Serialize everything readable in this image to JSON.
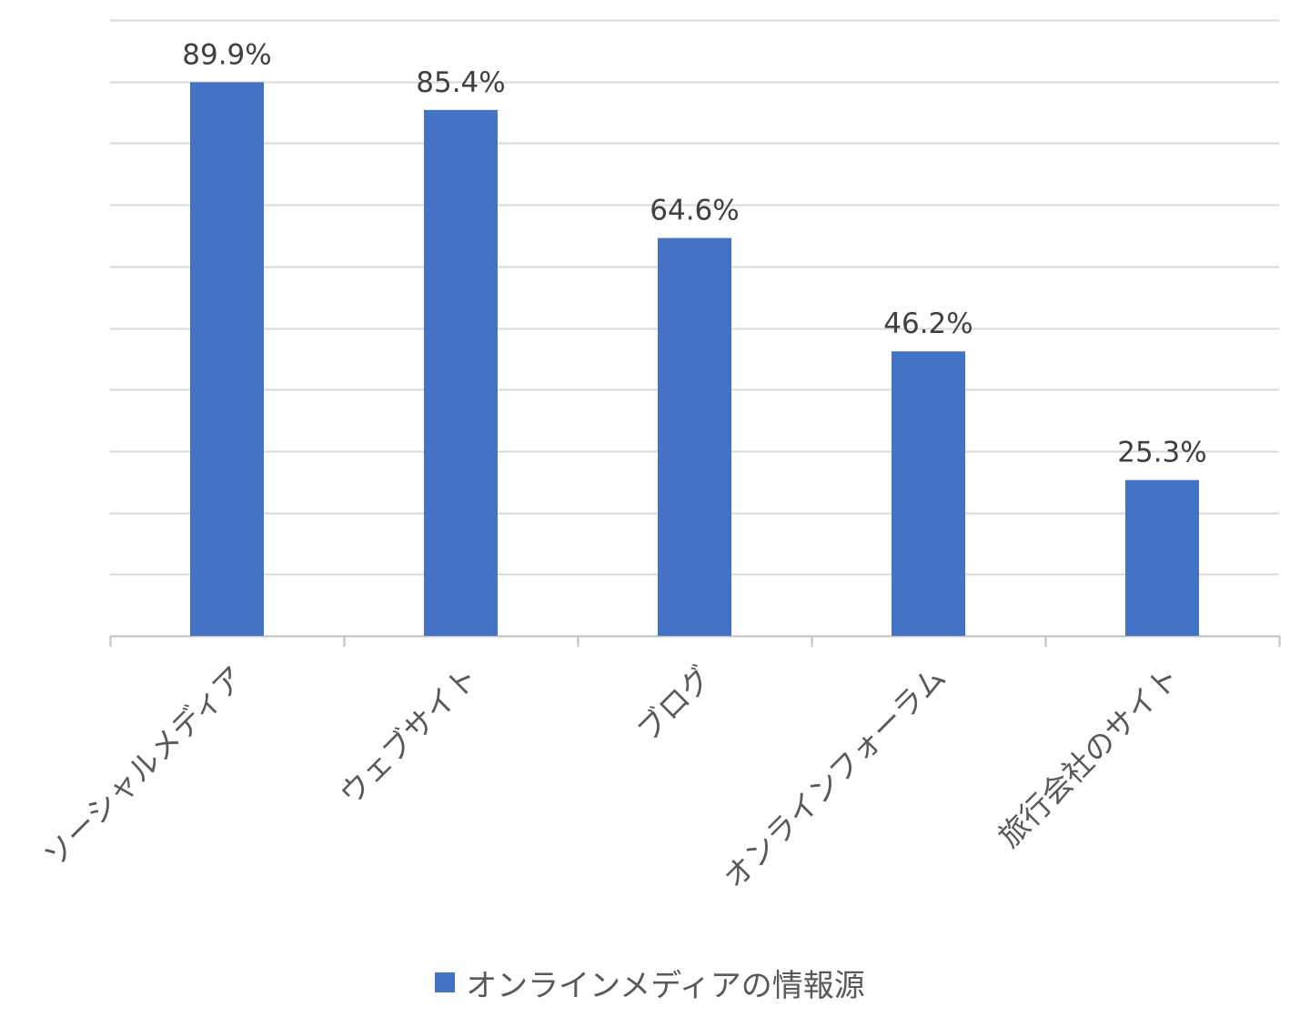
{
  "chart_data": {
    "type": "bar",
    "categories": [
      "ソーシャルメディア",
      "ウェブサイト",
      "ブログ",
      "オンラインフォーラム",
      "旅行会社のサイト"
    ],
    "series": [
      {
        "name": "オンラインメディアの情報源",
        "values": [
          89.9,
          85.4,
          64.6,
          46.2,
          25.3
        ],
        "data_labels": [
          "89.9%",
          "85.4%",
          "64.6%",
          "46.2%",
          "25.3%"
        ],
        "color": "#4472C4"
      }
    ],
    "ylim": [
      0,
      100
    ],
    "y_gridline_step": 10,
    "y_tick_labels_shown": false,
    "grid": true,
    "legend_position": "bottom"
  },
  "colors": {
    "bar": "#4472C4",
    "gridline": "#d9d9d9",
    "axis": "#bfbfbf",
    "data_label": "#404040",
    "category_label": "#595959",
    "legend_text": "#595959"
  }
}
